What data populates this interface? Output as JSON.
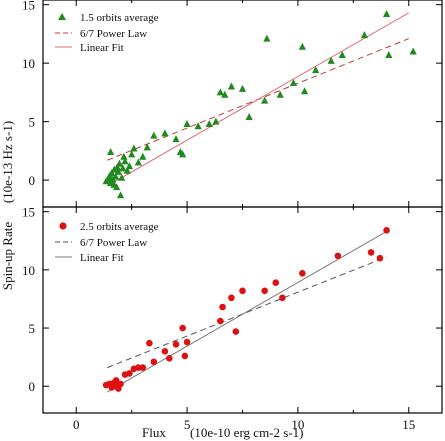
{
  "chart_data": [
    {
      "type": "scatter",
      "panel": "top",
      "xlim": [
        -1.5,
        16.5
      ],
      "ylim": [
        -2.3,
        15.4
      ],
      "x_ticks": [
        0,
        5,
        10,
        15
      ],
      "y_ticks": [
        0,
        5,
        10,
        15
      ],
      "legend": "top-left",
      "legend_labels": [
        "1.5 orbits average",
        "6/7 Power Law",
        "Linear Fit"
      ],
      "colors": {
        "points": "#1f8a1f",
        "power_law": "#c0392b",
        "linear_fit": "#e06a7a"
      },
      "series": [
        {
          "name": "1.5 orbits average",
          "marker": "triangle",
          "points": [
            [
              1.35,
              -0.1
            ],
            [
              1.45,
              0.1
            ],
            [
              1.5,
              0.35
            ],
            [
              1.55,
              -0.25
            ],
            [
              1.6,
              0.6
            ],
            [
              1.65,
              0.05
            ],
            [
              1.7,
              -0.4
            ],
            [
              1.72,
              0.9
            ],
            [
              1.78,
              0.3
            ],
            [
              1.82,
              -0.6
            ],
            [
              1.85,
              1.1
            ],
            [
              1.9,
              0.7
            ],
            [
              1.95,
              1.4
            ],
            [
              2.0,
              -1.3
            ],
            [
              2.05,
              0.2
            ],
            [
              2.1,
              1.0
            ],
            [
              2.15,
              2.0
            ],
            [
              2.2,
              1.6
            ],
            [
              2.3,
              0.8
            ],
            [
              2.4,
              1.2
            ],
            [
              2.5,
              2.2
            ],
            [
              2.6,
              2.7
            ],
            [
              1.55,
              2.4
            ],
            [
              2.8,
              1.5
            ],
            [
              3.0,
              2.0
            ],
            [
              3.2,
              2.8
            ],
            [
              3.5,
              3.8
            ],
            [
              4.0,
              4.0
            ],
            [
              4.5,
              3.5
            ],
            [
              4.7,
              2.4
            ],
            [
              4.8,
              2.2
            ],
            [
              5.0,
              4.8
            ],
            [
              5.5,
              4.6
            ],
            [
              6.0,
              4.8
            ],
            [
              6.3,
              5.0
            ],
            [
              6.5,
              7.5
            ],
            [
              6.7,
              7.3
            ],
            [
              7.0,
              8.0
            ],
            [
              7.5,
              7.8
            ],
            [
              7.8,
              5.4
            ],
            [
              8.5,
              6.8
            ],
            [
              8.6,
              12.1
            ],
            [
              9.2,
              7.3
            ],
            [
              9.8,
              8.3
            ],
            [
              10.2,
              11.4
            ],
            [
              10.3,
              7.6
            ],
            [
              10.8,
              9.4
            ],
            [
              11.5,
              10.2
            ],
            [
              12.0,
              10.7
            ],
            [
              13.0,
              12.4
            ],
            [
              14.0,
              14.2
            ],
            [
              14.1,
              10.7
            ],
            [
              15.2,
              11.0
            ]
          ]
        },
        {
          "name": "6/7 Power Law",
          "style": "dashed",
          "points": [
            [
              1.4,
              1.7
            ],
            [
              15.0,
              12.1
            ]
          ]
        },
        {
          "name": "Linear Fit",
          "style": "solid",
          "points": [
            [
              1.4,
              -0.5
            ],
            [
              15.0,
              14.3
            ]
          ]
        }
      ]
    },
    {
      "type": "scatter",
      "panel": "bottom",
      "xlim": [
        -1.5,
        16.5
      ],
      "ylim": [
        -2.3,
        15.4
      ],
      "x_ticks": [
        0,
        5,
        10,
        15
      ],
      "y_ticks": [
        0,
        5,
        10,
        15
      ],
      "legend": "top-left",
      "legend_labels": [
        "2.5 orbits average",
        "6/7 Power Law",
        "Linear Fit"
      ],
      "colors": {
        "points": "#dd1111",
        "power_law": "#555555",
        "linear_fit": "#777777"
      },
      "series": [
        {
          "name": "2.5 orbits average",
          "marker": "circle",
          "points": [
            [
              1.35,
              0.1
            ],
            [
              1.5,
              0.2
            ],
            [
              1.6,
              -0.1
            ],
            [
              1.7,
              0.3
            ],
            [
              1.75,
              0.0
            ],
            [
              1.8,
              0.5
            ],
            [
              1.9,
              -0.2
            ],
            [
              2.0,
              0.2
            ],
            [
              2.2,
              1.0
            ],
            [
              2.4,
              1.1
            ],
            [
              2.6,
              1.5
            ],
            [
              2.8,
              1.6
            ],
            [
              3.0,
              1.6
            ],
            [
              3.3,
              3.7
            ],
            [
              3.5,
              2.1
            ],
            [
              4.0,
              3.0
            ],
            [
              4.2,
              2.4
            ],
            [
              4.5,
              3.6
            ],
            [
              4.8,
              5.0
            ],
            [
              4.9,
              2.6
            ],
            [
              5.0,
              3.8
            ],
            [
              6.5,
              5.6
            ],
            [
              6.6,
              6.8
            ],
            [
              7.0,
              7.6
            ],
            [
              7.2,
              4.7
            ],
            [
              7.5,
              8.2
            ],
            [
              8.5,
              8.2
            ],
            [
              9.0,
              8.9
            ],
            [
              9.3,
              7.6
            ],
            [
              10.2,
              9.7
            ],
            [
              11.8,
              11.2
            ],
            [
              13.3,
              11.5
            ],
            [
              13.7,
              11.0
            ],
            [
              14.0,
              13.4
            ]
          ]
        },
        {
          "name": "6/7 Power Law",
          "style": "dashed",
          "points": [
            [
              1.4,
              1.6
            ],
            [
              14.0,
              11.1
            ]
          ]
        },
        {
          "name": "Linear Fit",
          "style": "solid",
          "points": [
            [
              1.4,
              -0.5
            ],
            [
              14.0,
              13.3
            ]
          ]
        }
      ]
    }
  ],
  "axes": {
    "y_label_top": "(10e-13 Hz s-1)",
    "y_label_bottom": "Spin-up Rate",
    "x_label_prefix": "Flux",
    "x_label_units": "(10e-10  erg cm-2 s-1)"
  }
}
